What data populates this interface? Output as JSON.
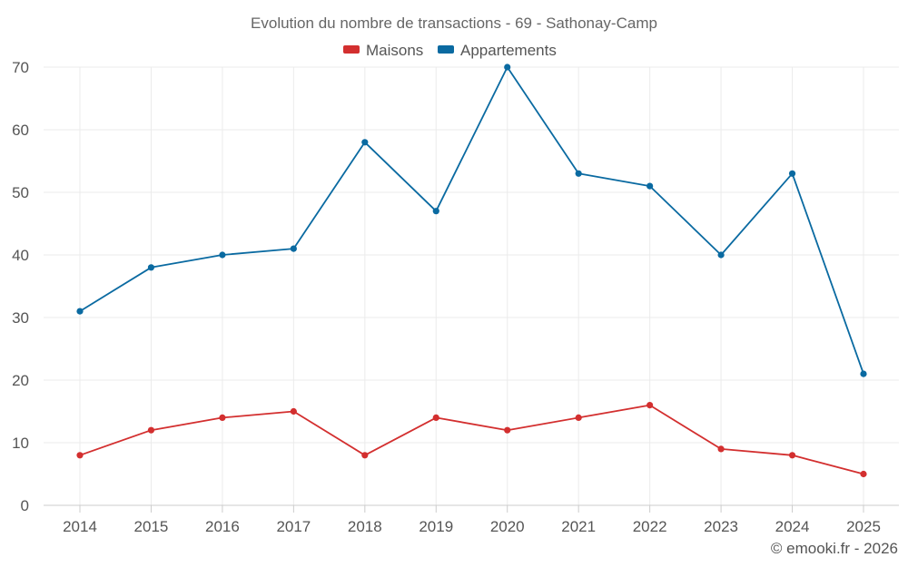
{
  "chart_data": {
    "type": "line",
    "title": "Evolution du nombre de transactions - 69 - Sathonay-Camp",
    "categories": [
      "2014",
      "2015",
      "2016",
      "2017",
      "2018",
      "2019",
      "2020",
      "2021",
      "2022",
      "2023",
      "2024",
      "2025"
    ],
    "series": [
      {
        "name": "Maisons",
        "color": "#d32f2f",
        "values": [
          8,
          12,
          14,
          15,
          8,
          14,
          12,
          14,
          16,
          9,
          8,
          5
        ]
      },
      {
        "name": "Appartements",
        "color": "#0a6aa1",
        "values": [
          31,
          38,
          40,
          41,
          58,
          47,
          70,
          53,
          51,
          40,
          53,
          21
        ]
      }
    ],
    "ylim": [
      0,
      70
    ],
    "yticks": [
      0,
      10,
      20,
      30,
      40,
      50,
      60,
      70
    ],
    "xlabel": "",
    "ylabel": "",
    "grid": true,
    "legend": "top-center"
  },
  "credit": "© emooki.fr - 2026"
}
